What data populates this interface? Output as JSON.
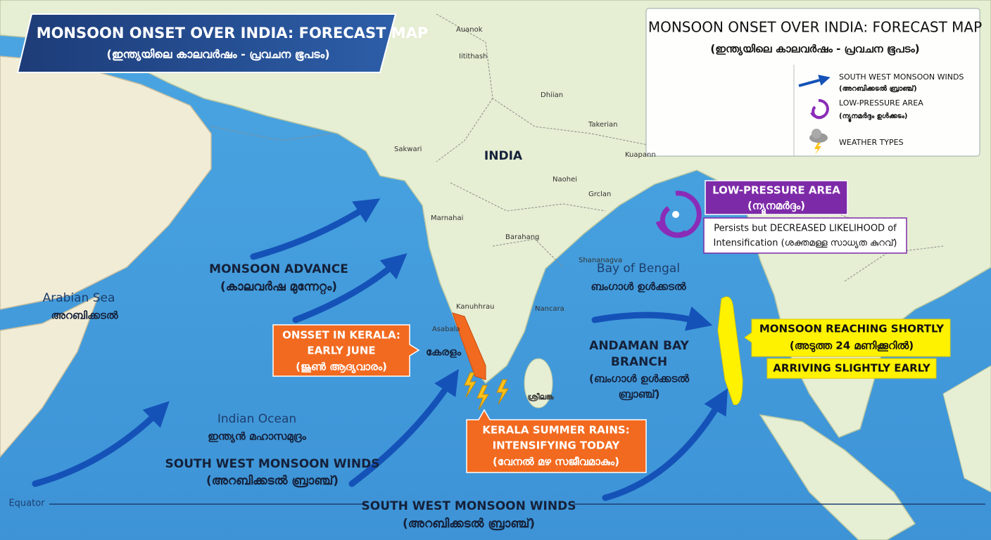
{
  "title_banner": {
    "title": "MONSOON ONSET OVER INDIA: FORECAST MAP",
    "subtitle": "(ഇന്ത്യയിലെ കാലവർഷം - പ്രവചന ഭൂപടം)"
  },
  "legend": {
    "title": "MONSOON ONSET OVER INDIA: FORECAST MAP",
    "subtitle": "(ഇന്ത്യയിലെ കാലവർഷം - പ്രവചന ഭൂപടം)",
    "items": [
      {
        "label": "SOUTH WEST MONSOON WINDS",
        "sublabel": "(അറബിക്കടൽ ബ്രാഞ്ച്)"
      },
      {
        "label": "LOW-PRESSURE AREA",
        "sublabel": "(ന്യൂനമർദ്ദം ഉൾക്കടം)"
      },
      {
        "label": "WEATHER TYPES"
      }
    ]
  },
  "places": [
    "Auanok",
    "Iitithash",
    "Dhiian",
    "INDIA",
    "Sakwari",
    "Takerian",
    "Kuapann",
    "Naohei",
    "Grclan",
    "Marnahai",
    "Barahang",
    "Shananagva",
    "Kanuhhrau",
    "Nancara",
    "Asabala"
  ],
  "seas": {
    "arabian_sea": [
      "Arabian Sea",
      "അറബിക്കടൽ"
    ],
    "bay_of_bengal": [
      "Bay of Bengal",
      "ബംഗാൾ ഉൾക്കടൽ"
    ],
    "indian_ocean": [
      "Indian Ocean",
      "ഇന്ത്യൻ മഹാസമുദ്രം"
    ],
    "kerala": "കേരളം",
    "sri_lanka": "ശ്രീലങ്ക",
    "equator": "Equator"
  },
  "callouts": {
    "monsoon_advance": [
      "MONSOON ADVANCE",
      "(കാലവർഷ മുന്നേറ്റം)"
    ],
    "onset_kerala": [
      "ONSSET IN KERALA:",
      "EARLY JUNE",
      "(ജൂൺ ആദ്യവാരം)"
    ],
    "kerala_rains": [
      "KERALA SUMMER RAINS:",
      "INTENSIFYING TODAY",
      "(വേനൽ മഴ സജീവമാകും)"
    ],
    "southwest_winds": [
      "SOUTH WEST MONSOON WINDS",
      "(അറബിക്കടൽ ബ്രാഞ്ച്)"
    ],
    "southwest_winds_bottom": [
      "SOUTH WEST MONSOON WINDS",
      "(അറബിക്കടൽ ബ്രാഞ്ച്)"
    ],
    "andaman_branch": [
      "ANDAMAN BAY",
      "BRANCH",
      "(ബംഗാൾ ഉൾക്കടൽ",
      "ബ്രാഞ്ച്)"
    ],
    "low_pressure": [
      "LOW-PRESSURE AREA",
      "(ന്യൂനമർദ്ദം)"
    ],
    "low_pressure_note": [
      "Persists but DECREASED LIKELIHOOD of",
      "Intensification (ശക്തമള്ള സാധ്യത കുറവ്)"
    ],
    "monsoon_reaching": [
      "MONSOON REACHING SHORTLY",
      "(അടുത്ത 24 മണിക്കൂറിൽ)"
    ],
    "arriving_early": "ARRIVING SLIGHTLY EARLY"
  }
}
